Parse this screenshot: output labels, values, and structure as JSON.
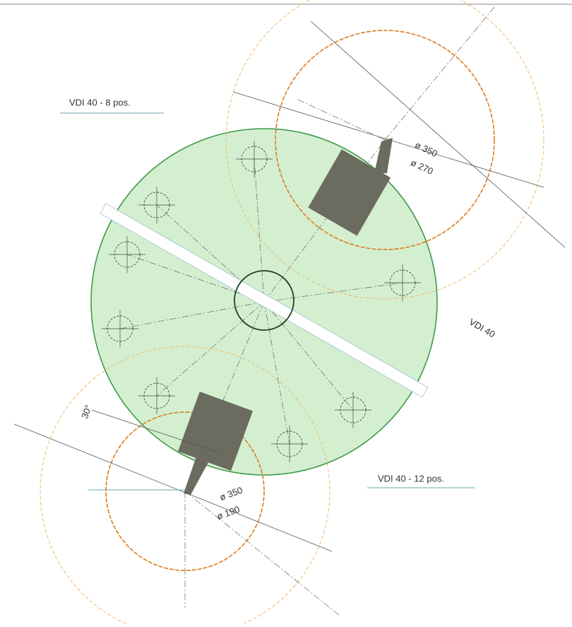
{
  "labels": {
    "turret_8": "VDI 40 - 8 pos.",
    "turret_12": "VDI 40 - 12 pos.",
    "slot": "VDI 40",
    "upper_dia_outer": "ø 350",
    "upper_dia_inner": "ø 270",
    "lower_dia_outer": "ø 350",
    "lower_dia_inner": "ø 190",
    "angle": "30°"
  }
}
